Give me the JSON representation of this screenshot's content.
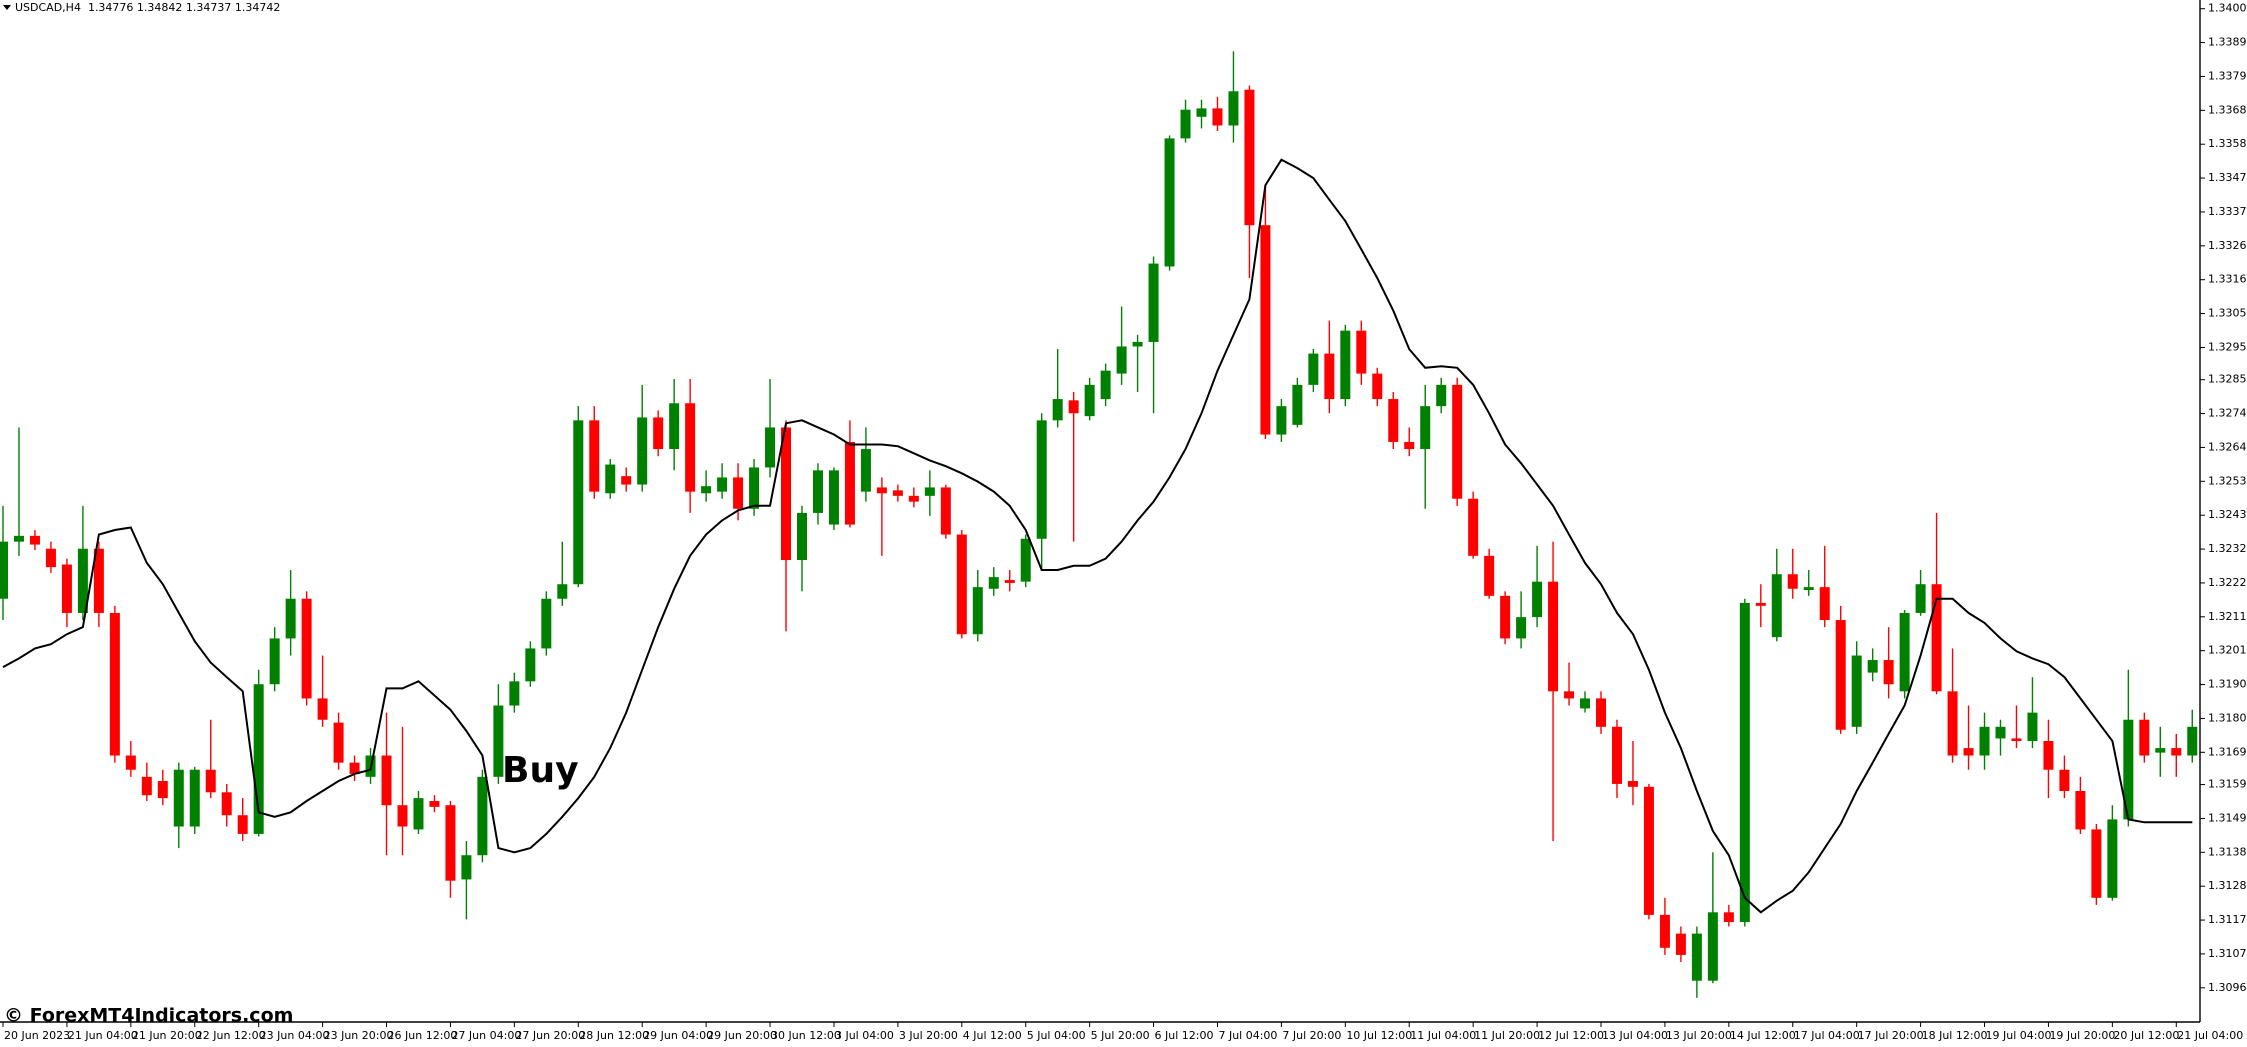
{
  "chart_data": {
    "type": "candlestick",
    "title": "USDCAD,H4  1.34776 1.34842 1.34737 1.34742",
    "watermark": "© ForexMT4Indicators.com",
    "annotation": "Buy",
    "up_color": "#008000",
    "down_color": "#ff0000",
    "ylim": [
      1.30859,
      1.34027
    ],
    "yticks": [
      {
        "value": 1.34,
        "label": "1.34000"
      },
      1.33895,
      {
        "value": 1.3379,
        "label": "1.33790"
      },
      1.33685,
      {
        "value": 1.3358,
        "label": "1.33580"
      },
      1.33475,
      {
        "value": 1.3337,
        "label": "1.33370"
      },
      1.33265,
      {
        "value": 1.3316,
        "label": "1.33160"
      },
      1.33055,
      {
        "value": 1.3295,
        "label": "1.32950"
      },
      {
        "value": 1.3285,
        "label": "1.32850"
      },
      1.32745,
      {
        "value": 1.3264,
        "label": "1.32640"
      },
      1.32535,
      {
        "value": 1.3243,
        "label": "1.32430"
      },
      1.32325,
      {
        "value": 1.3222,
        "label": "1.32220"
      },
      1.32115,
      {
        "value": 1.3201,
        "label": "1.32010"
      },
      1.31905,
      {
        "value": 1.318,
        "label": "1.31800"
      },
      1.31695,
      1.31595,
      {
        "value": 1.3149,
        "label": "1.31490"
      },
      1.31385,
      {
        "value": 1.3128,
        "label": "1.31280"
      },
      1.31175,
      {
        "value": 1.3107,
        "label": "1.31070"
      },
      1.30965
    ],
    "categories": [
      "20 Jun 2023",
      null,
      null,
      null,
      "21 Jun 04:00",
      null,
      null,
      null,
      "21 Jun 20:00",
      null,
      null,
      null,
      "22 Jun 12:00",
      null,
      null,
      null,
      "23 Jun 04:00",
      null,
      null,
      null,
      "23 Jun 20:00",
      null,
      null,
      null,
      "26 Jun 12:00",
      null,
      null,
      null,
      "27 Jun 04:00",
      null,
      null,
      null,
      "27 Jun 20:00",
      null,
      null,
      null,
      "28 Jun 12:00",
      null,
      null,
      null,
      "29 Jun 04:00",
      null,
      null,
      null,
      "29 Jun 20:00",
      null,
      null,
      null,
      "30 Jun 12:00",
      null,
      null,
      null,
      "3 Jul 04:00",
      null,
      null,
      null,
      "3 Jul 20:00",
      null,
      null,
      null,
      "4 Jul 12:00",
      null,
      null,
      null,
      "5 Jul 04:00",
      null,
      null,
      null,
      "5 Jul 20:00",
      null,
      null,
      null,
      "6 Jul 12:00",
      null,
      null,
      null,
      "7 Jul 04:00",
      null,
      null,
      null,
      "7 Jul 20:00",
      null,
      null,
      null,
      "10 Jul 12:00",
      null,
      null,
      null,
      "11 Jul 04:00",
      null,
      null,
      null,
      "11 Jul 20:00",
      null,
      null,
      null,
      "12 Jul 12:00",
      null,
      null,
      null,
      "13 Jul 04:00",
      null,
      null,
      null,
      "13 Jul 20:00",
      null,
      null,
      null,
      "14 Jul 12:00",
      null,
      null,
      null,
      "17 Jul 04:00",
      null,
      null,
      null,
      "17 Jul 20:00",
      null,
      null,
      null,
      "18 Jul 12:00",
      null,
      null,
      null,
      "19 Jul 04:00",
      null,
      null,
      null,
      "19 Jul 20:00",
      null,
      null,
      null,
      "20 Jul 12:00",
      null,
      null,
      null,
      "21 Jul 04:00",
      null
    ],
    "open": [
      1.32171,
      1.32348,
      1.32366,
      1.32326,
      1.32277,
      1.32127,
      1.32326,
      1.32127,
      1.31685,
      1.31619,
      1.31606,
      1.31465,
      1.31465,
      1.31641,
      1.31571,
      1.315,
      1.31442,
      1.31906,
      1.32048,
      1.32171,
      1.31862,
      1.31787,
      1.31663,
      1.31619,
      1.31685,
      1.31531,
      1.31456,
      1.31544,
      1.31531,
      1.31301,
      1.31376,
      1.31619,
      1.3184,
      1.31915,
      1.32017,
      1.32171,
      1.32216,
      1.32724,
      1.32498,
      1.32551,
      1.32525,
      1.32733,
      1.32635,
      1.32777,
      1.32498,
      1.32503,
      1.32547,
      1.3245,
      1.32578,
      1.32702,
      1.32291,
      1.32437,
      1.32401,
      1.32657,
      1.32503,
      1.32516,
      1.32507,
      1.3249,
      1.3249,
      1.32516,
      1.3237,
      1.32061,
      1.32202,
      1.32229,
      1.32224,
      1.32357,
      1.32724,
      1.32786,
      1.32737,
      1.3279,
      1.32869,
      1.32953,
      1.32967,
      1.33201,
      1.33598,
      1.33665,
      1.33691,
      1.33638,
      1.33749,
      1.33329,
      1.3268,
      1.3271,
      1.32834,
      1.32931,
      1.3279,
      1.33002,
      1.32869,
      1.3279,
      1.32657,
      1.32635,
      1.32768,
      1.32834,
      1.32481,
      1.32304,
      1.3218,
      1.32048,
      1.32114,
      1.32224,
      1.31884,
      1.31831,
      1.31862,
      1.31774,
      1.31606,
      1.31588,
      1.31191,
      1.31133,
      1.30987,
      1.30987,
      1.31199,
      1.31169,
      1.32158,
      1.32052,
      1.32247,
      1.32198,
      1.32207,
      1.32105,
      1.31774,
      1.31942,
      1.31981,
      1.31884,
      1.32127,
      1.32216,
      1.31884,
      1.31708,
      1.31685,
      1.31738,
      1.31738,
      1.3173,
      1.3173,
      1.31641,
      1.31575,
      1.31456,
      1.31244,
      1.31487,
      1.31796,
      1.31694,
      1.31708,
      1.31685
    ],
    "high": [
      1.32459,
      1.32702,
      1.32384,
      1.32348,
      1.32295,
      1.32459,
      1.32348,
      1.32149,
      1.3173,
      1.31663,
      1.31641,
      1.31663,
      1.3165,
      1.31796,
      1.31597,
      1.31553,
      1.31951,
      1.32083,
      1.3226,
      1.32194,
      1.31995,
      1.31818,
      1.31685,
      1.31708,
      1.31818,
      1.31774,
      1.31575,
      1.31562,
      1.31544,
      1.3142,
      1.31641,
      1.31906,
      1.31942,
      1.32039,
      1.32194,
      1.32348,
      1.32768,
      1.32768,
      1.32604,
      1.32578,
      1.32834,
      1.32755,
      1.32852,
      1.32852,
      1.32569,
      1.32591,
      1.32591,
      1.32604,
      1.32852,
      1.32724,
      1.32459,
      1.32591,
      1.32578,
      1.32724,
      1.32702,
      1.32547,
      1.32525,
      1.32516,
      1.32569,
      1.32525,
      1.32384,
      1.3226,
      1.32269,
      1.3226,
      1.3237,
      1.32746,
      1.32945,
      1.32812,
      1.32856,
      1.329,
      1.33077,
      1.32989,
      1.33232,
      1.33607,
      1.33718,
      1.33718,
      1.33727,
      1.33868,
      1.33762,
      1.33453,
      1.3279,
      1.32856,
      1.32945,
      1.33033,
      1.3302,
      1.33033,
      1.32887,
      1.32812,
      1.32702,
      1.32834,
      1.32856,
      1.32856,
      1.32503,
      1.32326,
      1.32194,
      1.32194,
      1.32335,
      1.32348,
      1.31973,
      1.31884,
      1.31884,
      1.31796,
      1.3173,
      1.31597,
      1.31244,
      1.31155,
      1.31155,
      1.31385,
      1.31222,
      1.32171,
      1.32216,
      1.32326,
      1.32326,
      1.3226,
      1.32335,
      1.32149,
      1.32039,
      1.32017,
      1.32083,
      1.32136,
      1.3226,
      1.32437,
      1.32017,
      1.3184,
      1.31818,
      1.31796,
      1.3184,
      1.31928,
      1.31796,
      1.31685,
      1.31619,
      1.31473,
      1.31531,
      1.31951,
      1.31818,
      1.31774,
      1.31752,
      1.31827
    ],
    "low": [
      1.32105,
      1.32304,
      1.32322,
      1.32251,
      1.32083,
      1.32105,
      1.32083,
      1.31663,
      1.31619,
      1.31544,
      1.31531,
      1.31398,
      1.31442,
      1.31553,
      1.31465,
      1.3142,
      1.31434,
      1.31884,
      1.31995,
      1.3184,
      1.31774,
      1.31641,
      1.31606,
      1.31597,
      1.31376,
      1.31376,
      1.31442,
      1.31509,
      1.31244,
      1.31177,
      1.31354,
      1.31597,
      1.31818,
      1.31898,
      1.31995,
      1.32149,
      1.32207,
      1.32481,
      1.32481,
      1.32503,
      1.32503,
      1.32613,
      1.32569,
      1.32437,
      1.32472,
      1.32481,
      1.32414,
      1.32428,
      1.32547,
      1.3207,
      1.32194,
      1.32401,
      1.32384,
      1.32392,
      1.32472,
      1.32304,
      1.32472,
      1.32454,
      1.32428,
      1.32357,
      1.32048,
      1.32039,
      1.3218,
      1.32194,
      1.32207,
      1.3226,
      1.32702,
      1.32348,
      1.32724,
      1.32768,
      1.32834,
      1.32812,
      1.32746,
      1.33188,
      1.33585,
      1.33629,
      1.33621,
      1.33585,
      1.33165,
      1.32666,
      1.32657,
      1.32702,
      1.32812,
      1.32746,
      1.32768,
      1.32834,
      1.32768,
      1.32635,
      1.32613,
      1.3245,
      1.32746,
      1.32459,
      1.32295,
      1.32171,
      1.3203,
      1.32017,
      1.32083,
      1.3142,
      1.3184,
      1.31818,
      1.31752,
      1.31553,
      1.31531,
      1.31177,
      1.31067,
      1.31045,
      1.30934,
      1.30979,
      1.31155,
      1.31155,
      1.32083,
      1.32039,
      1.32171,
      1.3218,
      1.32083,
      1.31752,
      1.31752,
      1.31915,
      1.31862,
      1.31862,
      1.32118,
      1.31875,
      1.31663,
      1.31641,
      1.31641,
      1.31685,
      1.31708,
      1.31708,
      1.31553,
      1.31553,
      1.31442,
      1.31222,
      1.31235,
      1.31465,
      1.31663,
      1.31619,
      1.31619,
      1.31663
    ],
    "close": [
      1.32348,
      1.32366,
      1.32339,
      1.32269,
      1.32127,
      1.32326,
      1.32127,
      1.31685,
      1.31641,
      1.31562,
      1.31553,
      1.31641,
      1.31641,
      1.31571,
      1.315,
      1.31442,
      1.31906,
      1.32048,
      1.32171,
      1.31862,
      1.31796,
      1.31663,
      1.31628,
      1.31685,
      1.31531,
      1.31465,
      1.31553,
      1.31526,
      1.31297,
      1.31376,
      1.31619,
      1.3184,
      1.31915,
      1.32017,
      1.32171,
      1.32216,
      1.32724,
      1.32503,
      1.32587,
      1.32525,
      1.32733,
      1.32635,
      1.32777,
      1.32503,
      1.3252,
      1.32547,
      1.3245,
      1.32578,
      1.32702,
      1.32291,
      1.32437,
      1.32569,
      1.32569,
      1.32401,
      1.32635,
      1.32498,
      1.3249,
      1.32472,
      1.32516,
      1.3237,
      1.32061,
      1.32207,
      1.32238,
      1.3222,
      1.32357,
      1.32724,
      1.3279,
      1.32746,
      1.32834,
      1.32878,
      1.32953,
      1.32967,
      1.3321,
      1.33598,
      1.33687,
      1.33691,
      1.33638,
      1.33744,
      1.33329,
      1.3268,
      1.32768,
      1.32834,
      1.32931,
      1.3279,
      1.33002,
      1.32869,
      1.3279,
      1.32657,
      1.32635,
      1.32768,
      1.32834,
      1.32481,
      1.32304,
      1.3218,
      1.32048,
      1.32114,
      1.32224,
      1.31884,
      1.31862,
      1.31862,
      1.31774,
      1.31597,
      1.31588,
      1.31191,
      1.31089,
      1.31067,
      1.31133,
      1.31199,
      1.31169,
      1.32158,
      1.32149,
      1.32247,
      1.32202,
      1.32207,
      1.32105,
      1.31765,
      1.31995,
      1.31981,
      1.31906,
      1.32127,
      1.32216,
      1.31884,
      1.31685,
      1.31685,
      1.31774,
      1.31774,
      1.3173,
      1.31818,
      1.31641,
      1.31575,
      1.31456,
      1.31244,
      1.31487,
      1.31796,
      1.31685,
      1.31708,
      1.31685,
      1.31774
    ],
    "overlay": {
      "color": "#000000",
      "values": [
        1.31959,
        1.31986,
        1.32017,
        1.3203,
        1.32061,
        1.32083,
        1.3237,
        1.32384,
        1.32392,
        1.32282,
        1.32216,
        1.32127,
        1.32039,
        1.31973,
        1.31928,
        1.31884,
        1.31509,
        1.31495,
        1.31509,
        1.31544,
        1.31575,
        1.31606,
        1.31628,
        1.31641,
        1.31893,
        1.31893,
        1.31915,
        1.31871,
        1.31827,
        1.31761,
        1.31685,
        1.31398,
        1.31385,
        1.31398,
        1.31442,
        1.31495,
        1.31553,
        1.31619,
        1.31708,
        1.31818,
        1.31951,
        1.32083,
        1.32202,
        1.32304,
        1.3237,
        1.32414,
        1.32445,
        1.32459,
        1.32459,
        1.32715,
        1.32724,
        1.32702,
        1.3268,
        1.32649,
        1.32649,
        1.32649,
        1.32644,
        1.32622,
        1.326,
        1.32582,
        1.3256,
        1.32534,
        1.32503,
        1.32459,
        1.32384,
        1.3226,
        1.3226,
        1.32273,
        1.32273,
        1.32295,
        1.32348,
        1.32414,
        1.32472,
        1.32547,
        1.32635,
        1.32746,
        1.32878,
        1.32989,
        1.33099,
        1.33453,
        1.33532,
        1.33506,
        1.33475,
        1.33408,
        1.33342,
        1.33254,
        1.33165,
        1.33064,
        1.32945,
        1.32887,
        1.32892,
        1.32887,
        1.32834,
        1.32746,
        1.32649,
        1.32591,
        1.32525,
        1.32459,
        1.3237,
        1.32282,
        1.32216,
        1.32127,
        1.32061,
        1.31951,
        1.31818,
        1.31708,
        1.31575,
        1.31451,
        1.31376,
        1.31244,
        1.31199,
        1.31235,
        1.31266,
        1.31323,
        1.31398,
        1.31473,
        1.31575,
        1.31663,
        1.31752,
        1.3184,
        1.31995,
        1.32171,
        1.32171,
        1.32127,
        1.32096,
        1.32048,
        1.32008,
        1.31986,
        1.31968,
        1.31928,
        1.31862,
        1.31796,
        1.3173,
        1.31487,
        1.31478,
        1.31478,
        1.31478,
        1.31478
      ]
    }
  }
}
